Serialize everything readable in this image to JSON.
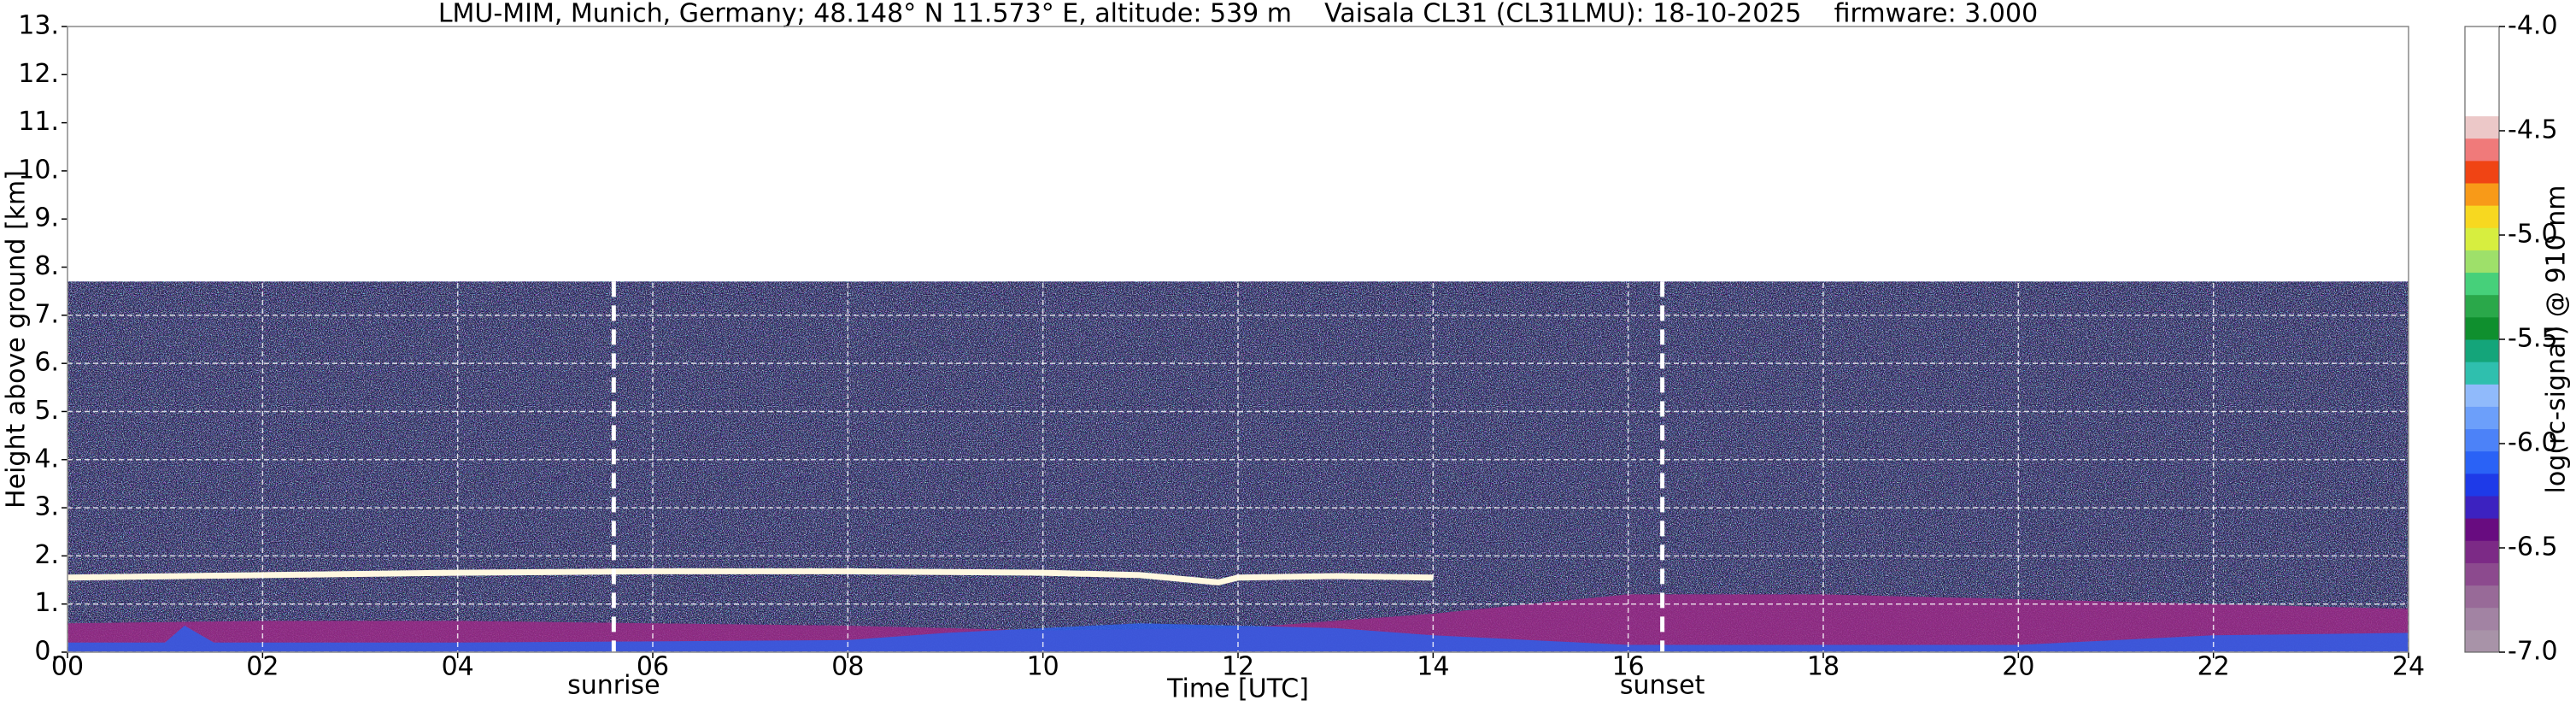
{
  "chart_data": {
    "type": "heatmap",
    "title": "LMU-MIM, Munich, Germany; 48.148° N 11.573° E, altitude: 539 m    Vaisala CL31 (CL31LMU): 18-10-2025    firmware: 3.000",
    "x_label": "Time [UTC]",
    "y_label": "Height above ground [km]",
    "xlim": [
      0,
      24
    ],
    "ylim": [
      0,
      13
    ],
    "xticks": [
      {
        "value": 0,
        "label": "00"
      },
      {
        "value": 2,
        "label": "02"
      },
      {
        "value": 4,
        "label": "04"
      },
      {
        "value": 6,
        "label": "06"
      },
      {
        "value": 8,
        "label": "08"
      },
      10,
      12,
      14,
      16,
      18,
      20,
      22,
      24
    ],
    "yticks": [
      {
        "value": 0,
        "label": "0."
      },
      {
        "value": 1,
        "label": "1."
      },
      {
        "value": 2,
        "label": "2."
      },
      {
        "value": 3,
        "label": "3."
      },
      {
        "value": 4,
        "label": "4."
      },
      {
        "value": 5,
        "label": "5."
      },
      {
        "value": 6,
        "label": "6."
      },
      {
        "value": 7,
        "label": "7."
      },
      {
        "value": 8,
        "label": "8."
      },
      {
        "value": 9,
        "label": "9."
      },
      {
        "value": 10,
        "label": "10."
      },
      {
        "value": 11,
        "label": "11."
      },
      {
        "value": 12,
        "label": "12."
      },
      {
        "value": 13,
        "label": "13."
      }
    ],
    "grid": true,
    "measurement_top": 7.7,
    "background_color": "#1c1640",
    "annotations": [
      {
        "text": "sunrise",
        "x": 5.6
      },
      {
        "text": "sunset",
        "x": 16.35
      }
    ],
    "series": [
      {
        "kind": "area",
        "color": "#9a2a86",
        "x": [
          0,
          2,
          4,
          6,
          8,
          10,
          12,
          14,
          16,
          18,
          20,
          22,
          24
        ],
        "values": [
          0.6,
          0.65,
          0.65,
          0.6,
          0.55,
          0.45,
          0.5,
          0.8,
          1.2,
          1.2,
          1.1,
          1.0,
          0.9
        ]
      },
      {
        "kind": "area",
        "color": "#2f5ee8",
        "x": [
          0,
          1,
          1.2,
          1.5,
          4,
          8,
          9,
          10,
          11,
          12,
          13,
          14,
          16,
          20,
          22,
          24
        ],
        "values": [
          0.2,
          0.2,
          0.55,
          0.2,
          0.2,
          0.25,
          0.4,
          0.5,
          0.6,
          0.55,
          0.5,
          0.35,
          0.15,
          0.15,
          0.35,
          0.4
        ]
      },
      {
        "kind": "line",
        "color": "#fff8e0",
        "x": [
          0,
          2,
          4,
          6,
          8,
          10,
          11,
          11.8,
          12,
          13,
          14
        ],
        "values": [
          1.55,
          1.6,
          1.65,
          1.68,
          1.68,
          1.65,
          1.6,
          1.45,
          1.55,
          1.58,
          1.55
        ]
      }
    ],
    "colorbar": {
      "label": "log(rc-signal) @ 910 nm",
      "lim": [
        -7,
        -4
      ],
      "ticks": [
        {
          "value": -7,
          "label": "-7.0"
        },
        -6.5,
        {
          "value": -6,
          "label": "-6.0"
        },
        -5.5,
        {
          "value": -5,
          "label": "-5.0"
        },
        -4.5,
        {
          "value": -4,
          "label": "-4.0"
        }
      ],
      "colors": [
        "#a893a8",
        "#a283a3",
        "#986a98",
        "#8c4a8e",
        "#7c2a86",
        "#680c80",
        "#3c22c0",
        "#1e3ae8",
        "#2a62f6",
        "#4c82f8",
        "#6c9ffa",
        "#90bafb",
        "#2fbfae",
        "#14a57a",
        "#0f8f2e",
        "#2aa84a",
        "#46d07a",
        "#9ee06a",
        "#d7ee3f",
        "#f7d820",
        "#f89a18",
        "#f04414",
        "#f07a7a",
        "#ecc8c8",
        "#ffffff",
        "#ffffff",
        "#ffffff",
        "#ffffff"
      ]
    }
  }
}
